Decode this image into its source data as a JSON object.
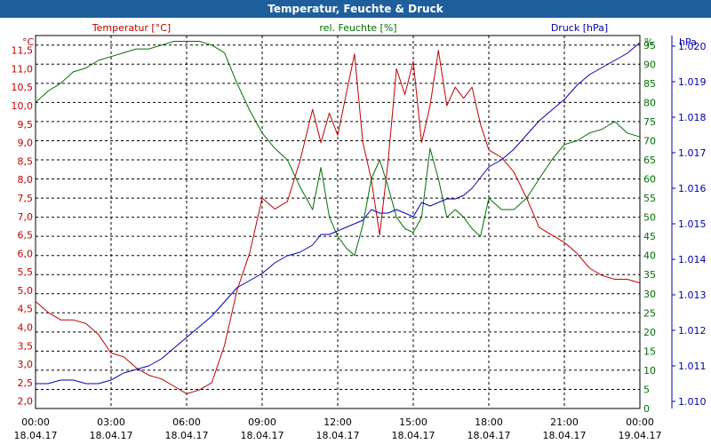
{
  "window_title": "Temperatur, Feuchte & Druck",
  "colors": {
    "temperature": "#c00000",
    "humidity": "#007000",
    "pressure": "#0000b0",
    "title_bar": "#1f5e9c"
  },
  "chart_data": {
    "type": "line",
    "title": "Temperatur, Feuchte & Druck",
    "x_ticks": [
      {
        "time": "00:00",
        "date": "18.04.17"
      },
      {
        "time": "03:00",
        "date": "18.04.17"
      },
      {
        "time": "06:00",
        "date": "18.04.17"
      },
      {
        "time": "09:00",
        "date": "18.04.17"
      },
      {
        "time": "12:00",
        "date": "18.04.17"
      },
      {
        "time": "15:00",
        "date": "18.04.17"
      },
      {
        "time": "18:00",
        "date": "18.04.17"
      },
      {
        "time": "21:00",
        "date": "18.04.17"
      },
      {
        "time": "00:00",
        "date": "19.04.17"
      }
    ],
    "x_range": [
      "18.04.17 00:00",
      "19.04.17 00:00"
    ],
    "grid": true,
    "axes": {
      "temperature": {
        "unit": "°C",
        "label": "Temperatur [°C]",
        "range": [
          1.8,
          11.9
        ],
        "ticks": [
          "2,0",
          "2,5",
          "3,0",
          "3,5",
          "4,0",
          "4,5",
          "5,0",
          "5,5",
          "6,0",
          "6,5",
          "7,0",
          "7,5",
          "8,0",
          "8,5",
          "9,0",
          "9,5",
          "10,0",
          "10,5",
          "11,0",
          "11,5"
        ],
        "tick_values": [
          2.0,
          2.5,
          3.0,
          3.5,
          4.0,
          4.5,
          5.0,
          5.5,
          6.0,
          6.5,
          7.0,
          7.5,
          8.0,
          8.5,
          9.0,
          9.5,
          10.0,
          10.5,
          11.0,
          11.5
        ]
      },
      "humidity": {
        "unit": "%",
        "label": "rel. Feuchte [%]",
        "range": [
          0,
          97.5
        ],
        "ticks": [
          "0",
          "5",
          "10",
          "15",
          "20",
          "25",
          "30",
          "35",
          "40",
          "45",
          "50",
          "55",
          "60",
          "65",
          "70",
          "75",
          "80",
          "85",
          "90",
          "95"
        ],
        "tick_values": [
          0,
          5,
          10,
          15,
          20,
          25,
          30,
          35,
          40,
          45,
          50,
          55,
          60,
          65,
          70,
          75,
          80,
          85,
          90,
          95
        ]
      },
      "pressure": {
        "unit": "hPa",
        "label": "Druck [hPa]",
        "range": [
          1009.8,
          1020.3
        ],
        "ticks": [
          "1.010",
          "1.011",
          "1.012",
          "1.013",
          "1.014",
          "1.015",
          "1.016",
          "1.017",
          "1.018",
          "1.019",
          "1.020"
        ],
        "tick_values": [
          1010,
          1011,
          1012,
          1013,
          1014,
          1015,
          1016,
          1017,
          1018,
          1019,
          1020
        ]
      }
    },
    "series": [
      {
        "name": "Temperatur [°C]",
        "axis": "temperature",
        "x": [
          "18.04.17 00:00",
          "18.04.17 00:30",
          "18.04.17 01:00",
          "18.04.17 01:30",
          "18.04.17 02:00",
          "18.04.17 02:30",
          "18.04.17 03:00",
          "18.04.17 03:30",
          "18.04.17 04:00",
          "18.04.17 04:30",
          "18.04.17 05:00",
          "18.04.17 05:30",
          "18.04.17 06:00",
          "18.04.17 06:30",
          "18.04.17 07:00",
          "18.04.17 07:30",
          "18.04.17 08:00",
          "18.04.17 08:30",
          "18.04.17 09:00",
          "18.04.17 09:30",
          "18.04.17 10:00",
          "18.04.17 10:30",
          "18.04.17 11:00",
          "18.04.17 11:20",
          "18.04.17 11:40",
          "18.04.17 12:00",
          "18.04.17 12:20",
          "18.04.17 12:40",
          "18.04.17 13:00",
          "18.04.17 13:20",
          "18.04.17 13:40",
          "18.04.17 14:00",
          "18.04.17 14:20",
          "18.04.17 14:40",
          "18.04.17 15:00",
          "18.04.17 15:20",
          "18.04.17 15:40",
          "18.04.17 16:00",
          "18.04.17 16:20",
          "18.04.17 16:40",
          "18.04.17 17:00",
          "18.04.17 17:20",
          "18.04.17 17:40",
          "18.04.17 18:00",
          "18.04.17 18:30",
          "18.04.17 19:00",
          "18.04.17 19:30",
          "18.04.17 20:00",
          "18.04.17 20:30",
          "18.04.17 21:00",
          "18.04.17 21:30",
          "18.04.17 22:00",
          "18.04.17 22:30",
          "18.04.17 23:00",
          "18.04.17 23:30",
          "19.04.17 00:00"
        ],
        "values": [
          4.7,
          4.4,
          4.2,
          4.2,
          4.1,
          3.8,
          3.3,
          3.2,
          2.9,
          2.7,
          2.6,
          2.4,
          2.2,
          2.3,
          2.5,
          3.5,
          5.0,
          6.0,
          7.5,
          7.2,
          7.4,
          8.5,
          9.9,
          9.0,
          9.8,
          9.2,
          10.3,
          11.4,
          9.0,
          8.0,
          6.5,
          8.5,
          11.0,
          10.3,
          11.2,
          9.0,
          10.0,
          11.5,
          10.0,
          10.5,
          10.2,
          10.5,
          9.5,
          8.8,
          8.6,
          8.2,
          7.5,
          6.7,
          6.5,
          6.3,
          6.0,
          5.6,
          5.4,
          5.3,
          5.3,
          5.2
        ]
      },
      {
        "name": "rel. Feuchte [%]",
        "axis": "humidity",
        "x": [
          "18.04.17 00:00",
          "18.04.17 00:30",
          "18.04.17 01:00",
          "18.04.17 01:30",
          "18.04.17 02:00",
          "18.04.17 02:30",
          "18.04.17 03:00",
          "18.04.17 03:30",
          "18.04.17 04:00",
          "18.04.17 04:30",
          "18.04.17 05:00",
          "18.04.17 05:30",
          "18.04.17 06:00",
          "18.04.17 06:30",
          "18.04.17 07:00",
          "18.04.17 07:30",
          "18.04.17 08:00",
          "18.04.17 08:30",
          "18.04.17 09:00",
          "18.04.17 09:30",
          "18.04.17 10:00",
          "18.04.17 10:30",
          "18.04.17 11:00",
          "18.04.17 11:20",
          "18.04.17 11:40",
          "18.04.17 12:00",
          "18.04.17 12:20",
          "18.04.17 12:40",
          "18.04.17 13:00",
          "18.04.17 13:20",
          "18.04.17 13:40",
          "18.04.17 14:00",
          "18.04.17 14:20",
          "18.04.17 14:40",
          "18.04.17 15:00",
          "18.04.17 15:20",
          "18.04.17 15:40",
          "18.04.17 16:00",
          "18.04.17 16:20",
          "18.04.17 16:40",
          "18.04.17 17:00",
          "18.04.17 17:20",
          "18.04.17 17:40",
          "18.04.17 18:00",
          "18.04.17 18:30",
          "18.04.17 19:00",
          "18.04.17 19:30",
          "18.04.17 20:00",
          "18.04.17 20:30",
          "18.04.17 21:00",
          "18.04.17 21:30",
          "18.04.17 22:00",
          "18.04.17 22:30",
          "18.04.17 23:00",
          "18.04.17 23:30",
          "19.04.17 00:00"
        ],
        "values": [
          80,
          83,
          85,
          88,
          89,
          91,
          92,
          93,
          94,
          94,
          95,
          96,
          96,
          96,
          95,
          93,
          85,
          78,
          72,
          68,
          65,
          58,
          52,
          63,
          50,
          45,
          42,
          40,
          48,
          60,
          65,
          58,
          50,
          47,
          46,
          50,
          68,
          60,
          50,
          52,
          50,
          47,
          45,
          55,
          52,
          52,
          55,
          60,
          65,
          69,
          70,
          72,
          73,
          75,
          72,
          71
        ]
      },
      {
        "name": "Druck [hPa]",
        "axis": "pressure",
        "x": [
          "18.04.17 00:00",
          "18.04.17 00:30",
          "18.04.17 01:00",
          "18.04.17 01:30",
          "18.04.17 02:00",
          "18.04.17 02:30",
          "18.04.17 03:00",
          "18.04.17 03:30",
          "18.04.17 04:00",
          "18.04.17 04:30",
          "18.04.17 05:00",
          "18.04.17 05:30",
          "18.04.17 06:00",
          "18.04.17 06:30",
          "18.04.17 07:00",
          "18.04.17 07:30",
          "18.04.17 08:00",
          "18.04.17 08:30",
          "18.04.17 09:00",
          "18.04.17 09:30",
          "18.04.17 10:00",
          "18.04.17 10:30",
          "18.04.17 11:00",
          "18.04.17 11:20",
          "18.04.17 11:40",
          "18.04.17 12:00",
          "18.04.17 12:20",
          "18.04.17 12:40",
          "18.04.17 13:00",
          "18.04.17 13:20",
          "18.04.17 13:40",
          "18.04.17 14:00",
          "18.04.17 14:20",
          "18.04.17 14:40",
          "18.04.17 15:00",
          "18.04.17 15:20",
          "18.04.17 15:40",
          "18.04.17 16:00",
          "18.04.17 16:20",
          "18.04.17 16:40",
          "18.04.17 17:00",
          "18.04.17 17:20",
          "18.04.17 17:40",
          "18.04.17 18:00",
          "18.04.17 18:30",
          "18.04.17 19:00",
          "18.04.17 19:30",
          "18.04.17 20:00",
          "18.04.17 20:30",
          "18.04.17 21:00",
          "18.04.17 21:30",
          "18.04.17 22:00",
          "18.04.17 22:30",
          "18.04.17 23:00",
          "18.04.17 23:30",
          "19.04.17 00:00"
        ],
        "values": [
          1010.5,
          1010.5,
          1010.6,
          1010.6,
          1010.5,
          1010.5,
          1010.6,
          1010.8,
          1010.9,
          1011.0,
          1011.2,
          1011.5,
          1011.8,
          1012.1,
          1012.4,
          1012.8,
          1013.2,
          1013.4,
          1013.6,
          1013.9,
          1014.1,
          1014.2,
          1014.4,
          1014.7,
          1014.7,
          1014.8,
          1014.9,
          1015.0,
          1015.1,
          1015.4,
          1015.3,
          1015.3,
          1015.4,
          1015.3,
          1015.2,
          1015.6,
          1015.5,
          1015.6,
          1015.7,
          1015.7,
          1015.8,
          1016.0,
          1016.3,
          1016.6,
          1016.8,
          1017.1,
          1017.5,
          1017.9,
          1018.2,
          1018.5,
          1018.9,
          1019.2,
          1019.4,
          1019.6,
          1019.8,
          1020.1
        ]
      }
    ]
  }
}
